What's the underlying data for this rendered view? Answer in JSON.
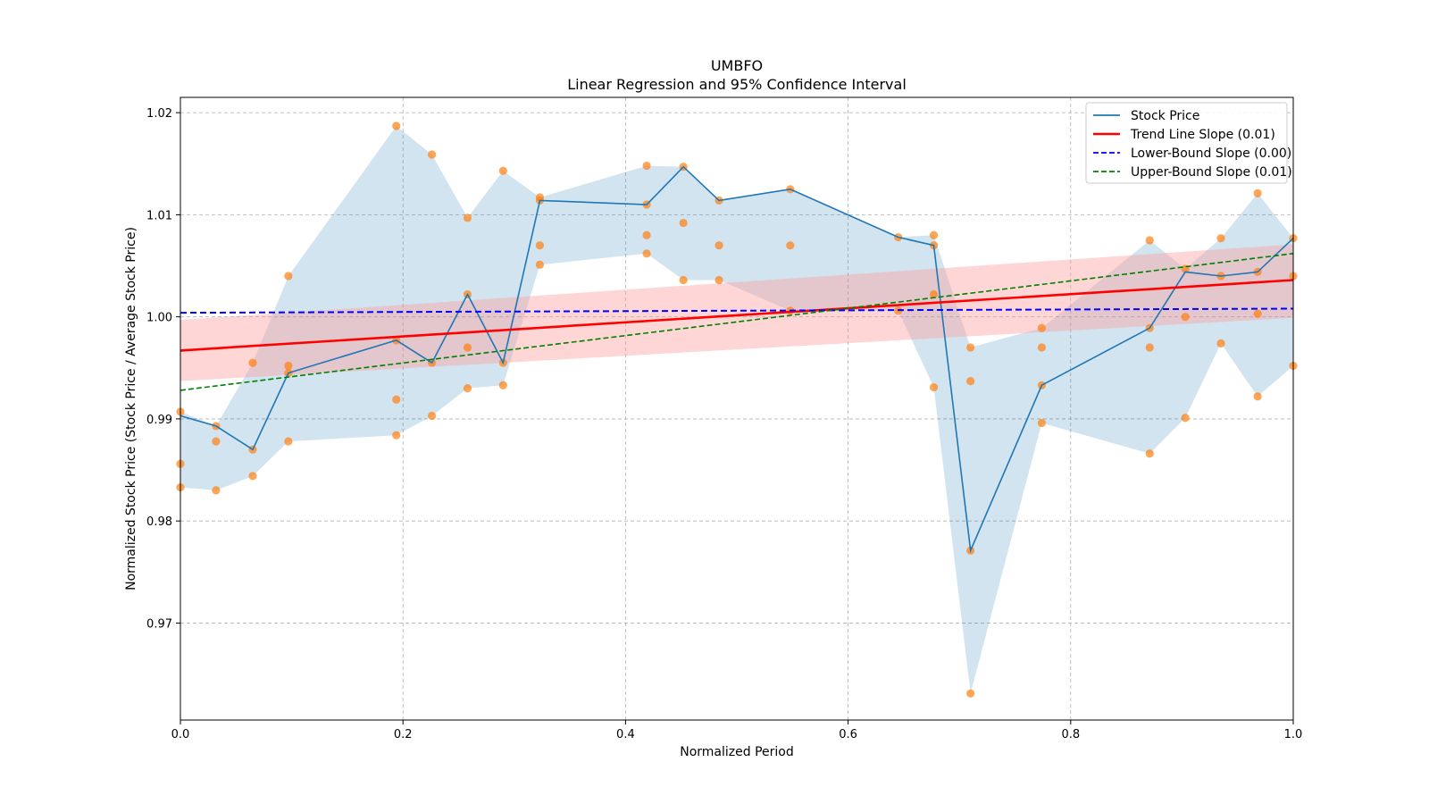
{
  "chart_data": {
    "type": "line",
    "title": "UMBFO",
    "subtitle": "Linear Regression and 95% Confidence Interval",
    "xlabel": "Normalized Period",
    "ylabel": "Normalized Stock Price (Stock Price / Average Stock Price)",
    "xlim": [
      0.0,
      1.0
    ],
    "ylim": [
      0.9605,
      1.0215
    ],
    "x_ticks": [
      "0.0",
      "0.2",
      "0.4",
      "0.6",
      "0.8",
      "1.0"
    ],
    "x_tick_values": [
      0.0,
      0.2,
      0.4,
      0.6,
      0.8,
      1.0
    ],
    "y_ticks": [
      "0.97",
      "0.98",
      "0.99",
      "1.00",
      "1.01",
      "1.02"
    ],
    "y_tick_values": [
      0.97,
      0.98,
      0.99,
      1.0,
      1.01,
      1.02
    ],
    "grid": true,
    "legend_position": "top-right",
    "colors": {
      "stock": "#1f77b4",
      "band": "#1f77b4",
      "scatter": "#ff7f0e",
      "trend": "#ff0000",
      "trend_ci": "#ff9999",
      "lower": "#0000ff",
      "upper": "#008000",
      "grid": "#b0b0b0"
    },
    "legend": [
      {
        "label": "Stock Price",
        "style": "solid",
        "color": "#1f77b4"
      },
      {
        "label": "Trend Line Slope (0.01)",
        "style": "solid",
        "color": "#ff0000"
      },
      {
        "label": "Lower-Bound Slope (0.00)",
        "style": "dashed",
        "color": "#0000ff"
      },
      {
        "label": "Upper-Bound Slope (0.01)",
        "style": "dashed",
        "color": "#008000"
      }
    ],
    "stock_price": {
      "x": [
        0.0,
        0.032,
        0.065,
        0.097,
        0.194,
        0.226,
        0.258,
        0.29,
        0.323,
        0.419,
        0.452,
        0.484,
        0.548,
        0.645,
        0.677,
        0.71,
        0.774,
        0.871,
        0.903,
        0.935,
        0.968,
        1.0
      ],
      "y": [
        0.9903,
        0.9893,
        0.987,
        0.9945,
        0.9977,
        0.9955,
        1.0022,
        0.9955,
        1.0114,
        1.011,
        1.0147,
        1.0114,
        1.0125,
        1.0078,
        1.007,
        0.9771,
        0.9933,
        0.9989,
        1.0044,
        1.004,
        1.0044,
        1.0077
      ]
    },
    "band": {
      "upper": [
        0.9907,
        0.9893,
        0.9955,
        1.004,
        1.0187,
        1.0159,
        1.0097,
        1.0143,
        1.0117,
        1.0148,
        1.0147,
        1.0114,
        1.0125,
        1.0078,
        1.008,
        0.997,
        0.9989,
        1.0075,
        1.0047,
        1.0077,
        1.0121,
        1.0077
      ],
      "lower": [
        0.9833,
        0.983,
        0.9844,
        0.9878,
        0.9884,
        0.9903,
        0.993,
        0.9933,
        1.0051,
        1.0062,
        1.0036,
        1.0036,
        1.0006,
        1.0006,
        0.9931,
        0.9631,
        0.9896,
        0.9866,
        0.9901,
        0.9974,
        0.9922,
        0.9952
      ]
    },
    "scatter": {
      "x": [
        0.0,
        0.0,
        0.0,
        0.032,
        0.032,
        0.032,
        0.065,
        0.065,
        0.065,
        0.097,
        0.097,
        0.097,
        0.097,
        0.194,
        0.194,
        0.194,
        0.194,
        0.226,
        0.226,
        0.226,
        0.258,
        0.258,
        0.258,
        0.258,
        0.29,
        0.29,
        0.29,
        0.323,
        0.323,
        0.323,
        0.323,
        0.419,
        0.419,
        0.419,
        0.419,
        0.452,
        0.452,
        0.452,
        0.484,
        0.484,
        0.484,
        0.548,
        0.548,
        0.548,
        0.645,
        0.645,
        0.677,
        0.677,
        0.677,
        0.677,
        0.71,
        0.71,
        0.71,
        0.71,
        0.774,
        0.774,
        0.774,
        0.774,
        0.871,
        0.871,
        0.871,
        0.871,
        0.903,
        0.903,
        0.903,
        0.935,
        0.935,
        0.935,
        0.968,
        0.968,
        0.968,
        0.968,
        1.0,
        1.0,
        1.0
      ],
      "y": [
        0.9907,
        0.9856,
        0.9833,
        0.9893,
        0.9878,
        0.983,
        0.9955,
        0.987,
        0.9844,
        1.004,
        0.9952,
        0.9945,
        0.9878,
        1.0187,
        0.9977,
        0.9919,
        0.9884,
        1.0159,
        0.9955,
        0.9903,
        1.0097,
        1.0022,
        0.997,
        0.993,
        1.0143,
        0.9955,
        0.9933,
        1.0117,
        1.0114,
        1.007,
        1.0051,
        1.0148,
        1.011,
        1.008,
        1.0062,
        1.0147,
        1.0092,
        1.0036,
        1.0114,
        1.007,
        1.0036,
        1.0125,
        1.007,
        1.0006,
        1.0078,
        1.0006,
        1.008,
        1.007,
        1.0022,
        0.9931,
        0.997,
        0.9937,
        0.9771,
        0.9631,
        0.9989,
        0.997,
        0.9933,
        0.9896,
        1.0075,
        0.9989,
        0.997,
        0.9866,
        1.0047,
        1.0,
        0.9901,
        1.0077,
        1.004,
        0.9974,
        1.0121,
        1.0044,
        1.0003,
        0.9922,
        1.0077,
        1.004,
        0.9952
      ]
    },
    "trend_line": {
      "x": [
        0.0,
        1.0
      ],
      "y": [
        0.9967,
        1.0036
      ]
    },
    "trend_ci": {
      "x": [
        0.0,
        1.0
      ],
      "lower": [
        0.9937,
        0.9999
      ],
      "upper": [
        0.9997,
        1.0071
      ]
    },
    "lower_bound_line": {
      "x": [
        0.0,
        1.0
      ],
      "y": [
        1.0004,
        1.0008
      ]
    },
    "upper_bound_line": {
      "x": [
        0.0,
        1.0
      ],
      "y": [
        0.9928,
        1.0062
      ]
    }
  }
}
